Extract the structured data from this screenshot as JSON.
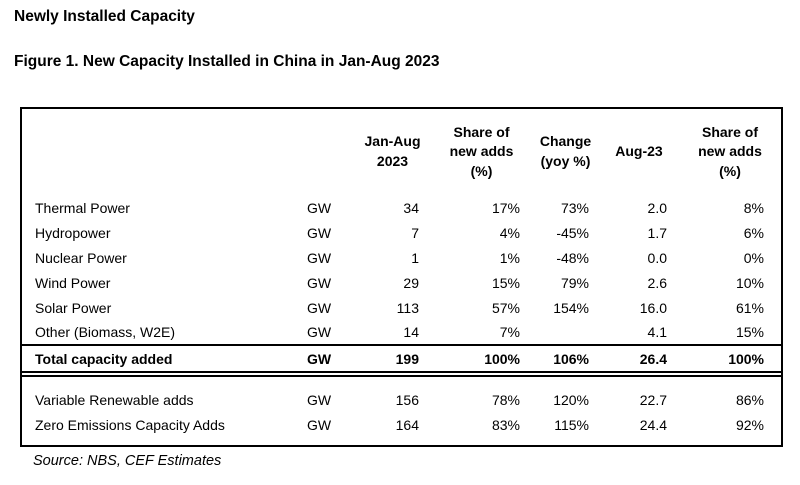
{
  "page": {
    "title": "Newly Installed Capacity",
    "figure_caption": "Figure 1. New Capacity Installed in China in Jan-Aug 2023",
    "source": "Source: NBS, CEF Estimates"
  },
  "chart_data": {
    "type": "table",
    "title": "Figure 1. New Capacity Installed in China in Jan-Aug 2023",
    "column_headers": [
      "Jan-Aug\n2023",
      "Share of\nnew adds\n(%)",
      "Change\n(yoy %)",
      "Aug-23",
      "Share of\nnew adds\n(%)"
    ],
    "rows": [
      {
        "label": "Thermal Power",
        "unit": "GW",
        "values": [
          "34",
          "17%",
          "73%",
          "2.0",
          "8%"
        ]
      },
      {
        "label": "Hydropower",
        "unit": "GW",
        "values": [
          "7",
          "4%",
          "-45%",
          "1.7",
          "6%"
        ]
      },
      {
        "label": "Nuclear Power",
        "unit": "GW",
        "values": [
          "1",
          "1%",
          "-48%",
          "0.0",
          "0%"
        ]
      },
      {
        "label": "Wind Power",
        "unit": "GW",
        "values": [
          "29",
          "15%",
          "79%",
          "2.6",
          "10%"
        ]
      },
      {
        "label": "Solar Power",
        "unit": "GW",
        "values": [
          "113",
          "57%",
          "154%",
          "16.0",
          "61%"
        ]
      },
      {
        "label": "Other (Biomass, W2E)",
        "unit": "GW",
        "values": [
          "14",
          "7%",
          "",
          "4.1",
          "15%"
        ]
      }
    ],
    "total_row": {
      "label": "Total capacity added",
      "unit": "GW",
      "values": [
        "199",
        "100%",
        "106%",
        "26.4",
        "100%"
      ]
    },
    "summary_rows": [
      {
        "label": "Variable Renewable adds",
        "unit": "GW",
        "values": [
          "156",
          "78%",
          "120%",
          "22.7",
          "86%"
        ]
      },
      {
        "label": "Zero Emissions Capacity Adds",
        "unit": "GW",
        "values": [
          "164",
          "83%",
          "115%",
          "24.4",
          "92%"
        ]
      }
    ]
  }
}
